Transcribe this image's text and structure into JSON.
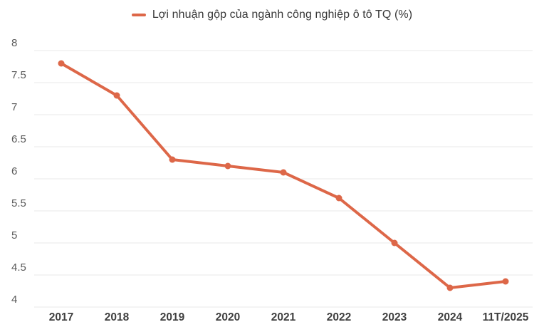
{
  "legend": {
    "label": "Lợi nhuận gộp của ngành công nghiệp ô tô TQ (%)",
    "marker_icon": "line-marker",
    "marker_color": "#dd6748"
  },
  "colors": {
    "background": "#ffffff",
    "line": "#dd6748",
    "grid": "#e9e9e9",
    "y_label": "#5a5a5a",
    "x_label": "#3f3f3f",
    "legend_text": "#383838"
  },
  "chart_data": {
    "type": "line",
    "title": "Lợi nhuận gộp của ngành công nghiệp ô tô TQ (%)",
    "categories": [
      "2017",
      "2018",
      "2019",
      "2020",
      "2021",
      "2022",
      "2023",
      "2024",
      "11T/2025"
    ],
    "series": [
      {
        "name": "Lợi nhuận gộp của ngành công nghiệp ô tô TQ (%)",
        "color": "#dd6748",
        "values": [
          7.8,
          7.3,
          6.3,
          6.2,
          6.1,
          5.7,
          5.0,
          4.3,
          4.4
        ]
      }
    ],
    "xlabel": "",
    "ylabel": "",
    "ylim": [
      4,
      8
    ],
    "ytick_step": 0.5,
    "yticks": [
      8,
      7.5,
      7,
      6.5,
      6,
      5.5,
      5,
      4.5,
      4
    ],
    "grid": "horizontal-only",
    "legend_position": "top-center",
    "marker": "circle"
  }
}
